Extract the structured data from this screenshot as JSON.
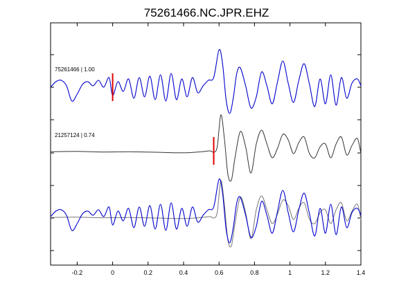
{
  "chart_data": {
    "type": "line",
    "title": "75261466.NC.JPR.EHZ",
    "xlabel": "",
    "ylabel": "",
    "xlim": [
      -0.35,
      1.4
    ],
    "x_ticks": [
      -0.2,
      0,
      0.2,
      0.4,
      0.6,
      0.8,
      1,
      1.2,
      1.4
    ],
    "x_tick_labels": [
      "-0.2",
      "0",
      "0.2",
      "0.4",
      "0.6",
      "0.8",
      "1",
      "1.2",
      "1.4"
    ],
    "grid": false,
    "colors": {
      "target": "#0000cc",
      "template": "#333333",
      "pick": "#e00000",
      "template_overlay": "#777777"
    },
    "traces": [
      {
        "label": "75261466 | 1.00",
        "event_id": "75261466",
        "cc": "1.00",
        "color": "#0000cc",
        "pick_time": 0.0,
        "x": [
          -0.35,
          -0.32,
          -0.29,
          -0.26,
          -0.23,
          -0.2,
          -0.17,
          -0.14,
          -0.11,
          -0.08,
          -0.05,
          -0.02,
          0.0,
          0.03,
          0.06,
          0.09,
          0.12,
          0.15,
          0.18,
          0.21,
          0.24,
          0.27,
          0.3,
          0.33,
          0.36,
          0.39,
          0.42,
          0.45,
          0.48,
          0.51,
          0.54,
          0.57,
          0.6,
          0.62,
          0.64,
          0.66,
          0.68,
          0.7,
          0.72,
          0.75,
          0.78,
          0.81,
          0.84,
          0.87,
          0.9,
          0.93,
          0.96,
          0.99,
          1.02,
          1.05,
          1.08,
          1.11,
          1.14,
          1.17,
          1.2,
          1.23,
          1.26,
          1.29,
          1.32,
          1.35,
          1.38,
          1.4
        ],
        "y": [
          0.05,
          0.25,
          0.3,
          0.1,
          -0.45,
          -0.2,
          0.15,
          0.25,
          0.1,
          0.3,
          0.05,
          0.4,
          -0.25,
          0.25,
          -0.1,
          0.35,
          -0.35,
          0.4,
          -0.3,
          0.45,
          -0.4,
          0.5,
          -0.45,
          0.55,
          -0.4,
          0.35,
          -0.3,
          0.4,
          -0.15,
          0.1,
          0.3,
          0.4,
          1.4,
          0.9,
          -0.4,
          -0.9,
          -0.35,
          0.55,
          0.75,
          0.1,
          -0.7,
          -0.3,
          0.6,
          0.1,
          -0.55,
          0.25,
          1.0,
          0.2,
          -0.5,
          0.3,
          0.9,
          0.15,
          -0.65,
          0.35,
          -0.55,
          0.5,
          -0.6,
          0.4,
          -0.35,
          0.2,
          0.35,
          0.1
        ]
      },
      {
        "label": "21257124 | 0.74",
        "event_id": "21257124",
        "cc": "0.74",
        "color": "#333333",
        "pick_time": 0.57,
        "x": [
          -0.35,
          -0.2,
          -0.05,
          0.1,
          0.25,
          0.4,
          0.5,
          0.55,
          0.57,
          0.59,
          0.61,
          0.63,
          0.65,
          0.67,
          0.69,
          0.72,
          0.75,
          0.78,
          0.81,
          0.84,
          0.87,
          0.9,
          0.93,
          0.96,
          0.99,
          1.02,
          1.05,
          1.08,
          1.11,
          1.14,
          1.17,
          1.2,
          1.23,
          1.26,
          1.29,
          1.32,
          1.35,
          1.38,
          1.4
        ],
        "y": [
          0.02,
          0.03,
          0.01,
          0.02,
          0.0,
          -0.02,
          0.02,
          0.05,
          0.0,
          0.2,
          1.35,
          0.5,
          -0.8,
          -1.0,
          -0.2,
          0.75,
          0.2,
          -0.75,
          0.3,
          0.8,
          0.3,
          -0.2,
          0.15,
          0.65,
          0.45,
          -0.05,
          0.35,
          0.55,
          -0.05,
          -0.2,
          0.2,
          0.3,
          -0.2,
          0.3,
          0.55,
          -0.1,
          0.25,
          0.5,
          -0.05
        ]
      }
    ]
  }
}
